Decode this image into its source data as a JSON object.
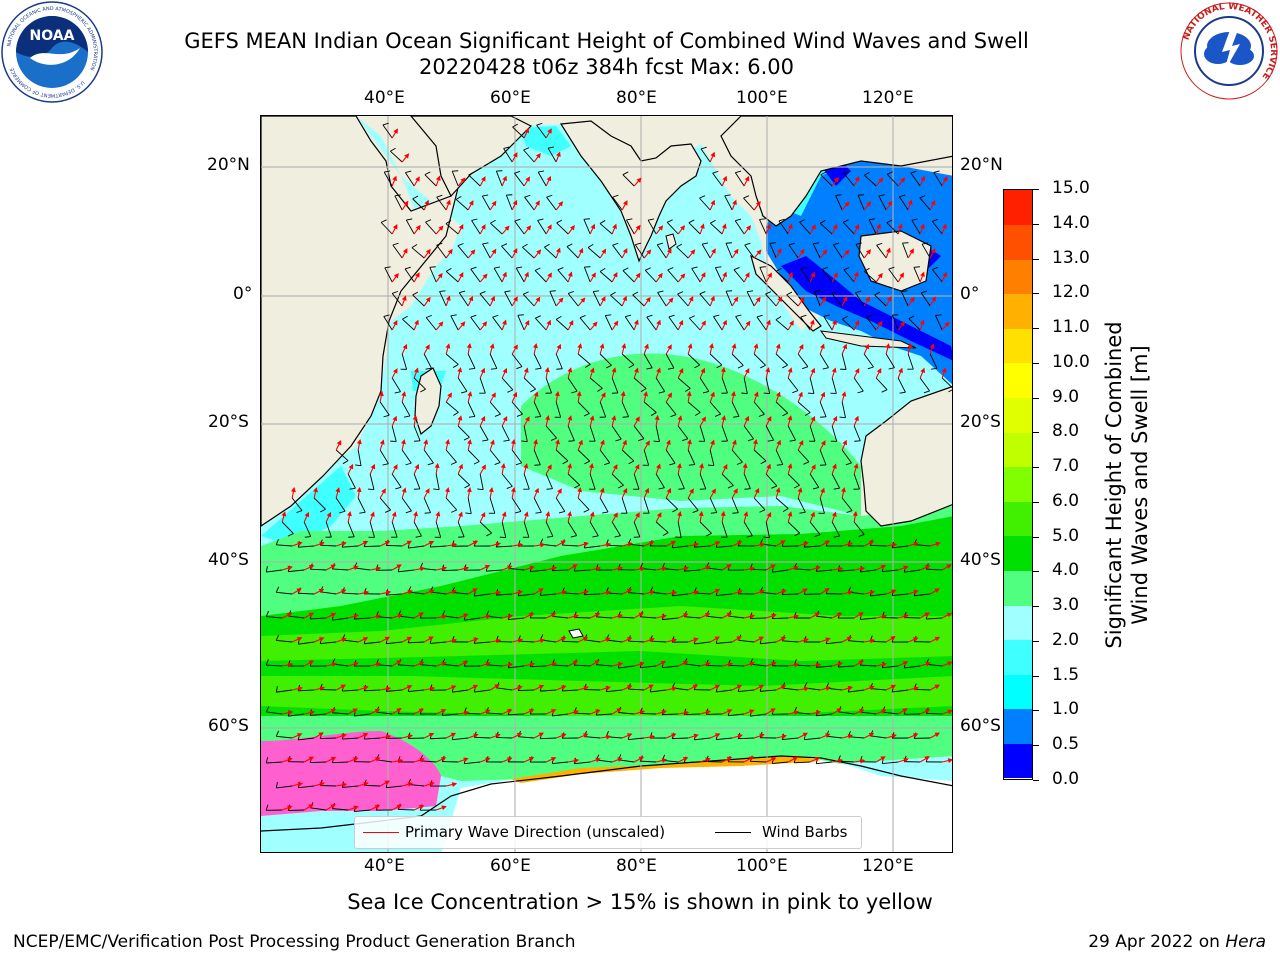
{
  "header": {
    "title_line1": "GEFS MEAN Indian Ocean Significant Height of Combined Wind Waves and Swell",
    "title_line2": "20220428 t06z 384h fcst   Max: 6.00"
  },
  "logos": {
    "noaa": {
      "text": "NOAA",
      "ring_text": "NATIONAL OCEANIC AND ATMOSPHERIC ADMINISTRATION",
      "ring_text_bottom": "U.S. DEPARTMENT OF COMMERCE"
    },
    "nws": {
      "ring_text": "NATIONAL WEATHER SERVICE"
    }
  },
  "map": {
    "lon_labels_top": [
      "40°E",
      "60°E",
      "80°E",
      "100°E",
      "120°E"
    ],
    "lon_labels_bottom": [
      "40°E",
      "60°E",
      "80°E",
      "100°E",
      "120°E"
    ],
    "lat_labels_left": [
      "20°N",
      "0°",
      "20°S",
      "40°S",
      "60°S"
    ],
    "lat_labels_right": [
      "20°N",
      "0°",
      "20°S",
      "40°S",
      "60°S"
    ]
  },
  "colorbar": {
    "title_line1": "Significant Height of Combined",
    "title_line2": "Wind Waves and Swell [m]",
    "tick_labels": [
      "15.0",
      "14.0",
      "13.0",
      "12.0",
      "11.0",
      "10.0",
      "9.0",
      "8.0",
      "7.0",
      "6.0",
      "5.0",
      "4.0",
      "3.0",
      "2.0",
      "1.5",
      "1.0",
      "0.5",
      "0.0"
    ],
    "levels": [
      0.0,
      0.5,
      1.0,
      1.5,
      2.0,
      3.0,
      4.0,
      5.0,
      6.0,
      7.0,
      8.0,
      9.0,
      10.0,
      11.0,
      12.0,
      13.0,
      14.0,
      15.0
    ],
    "colors": [
      "#0000ff",
      "#0080ff",
      "#00ffff",
      "#40ffff",
      "#a0ffff",
      "#50ff80",
      "#00e000",
      "#40f000",
      "#80ff00",
      "#c0ff00",
      "#e0ff00",
      "#ffff00",
      "#ffe000",
      "#ffb000",
      "#ff8000",
      "#ff5000",
      "#ff2000"
    ]
  },
  "legend": {
    "wave_direction_label": "Primary Wave Direction (unscaled)",
    "wind_barbs_label": "Wind Barbs",
    "wave_direction_color": "#ff0000",
    "wind_barbs_color": "#000000"
  },
  "footer": {
    "sea_ice_note": "Sea Ice Concentration > 15% is shown in pink to yellow",
    "credit": "NCEP/EMC/Verification Post Processing Product Generation Branch",
    "date_prefix": "29 Apr 2022 on ",
    "machine": "Hera"
  }
}
